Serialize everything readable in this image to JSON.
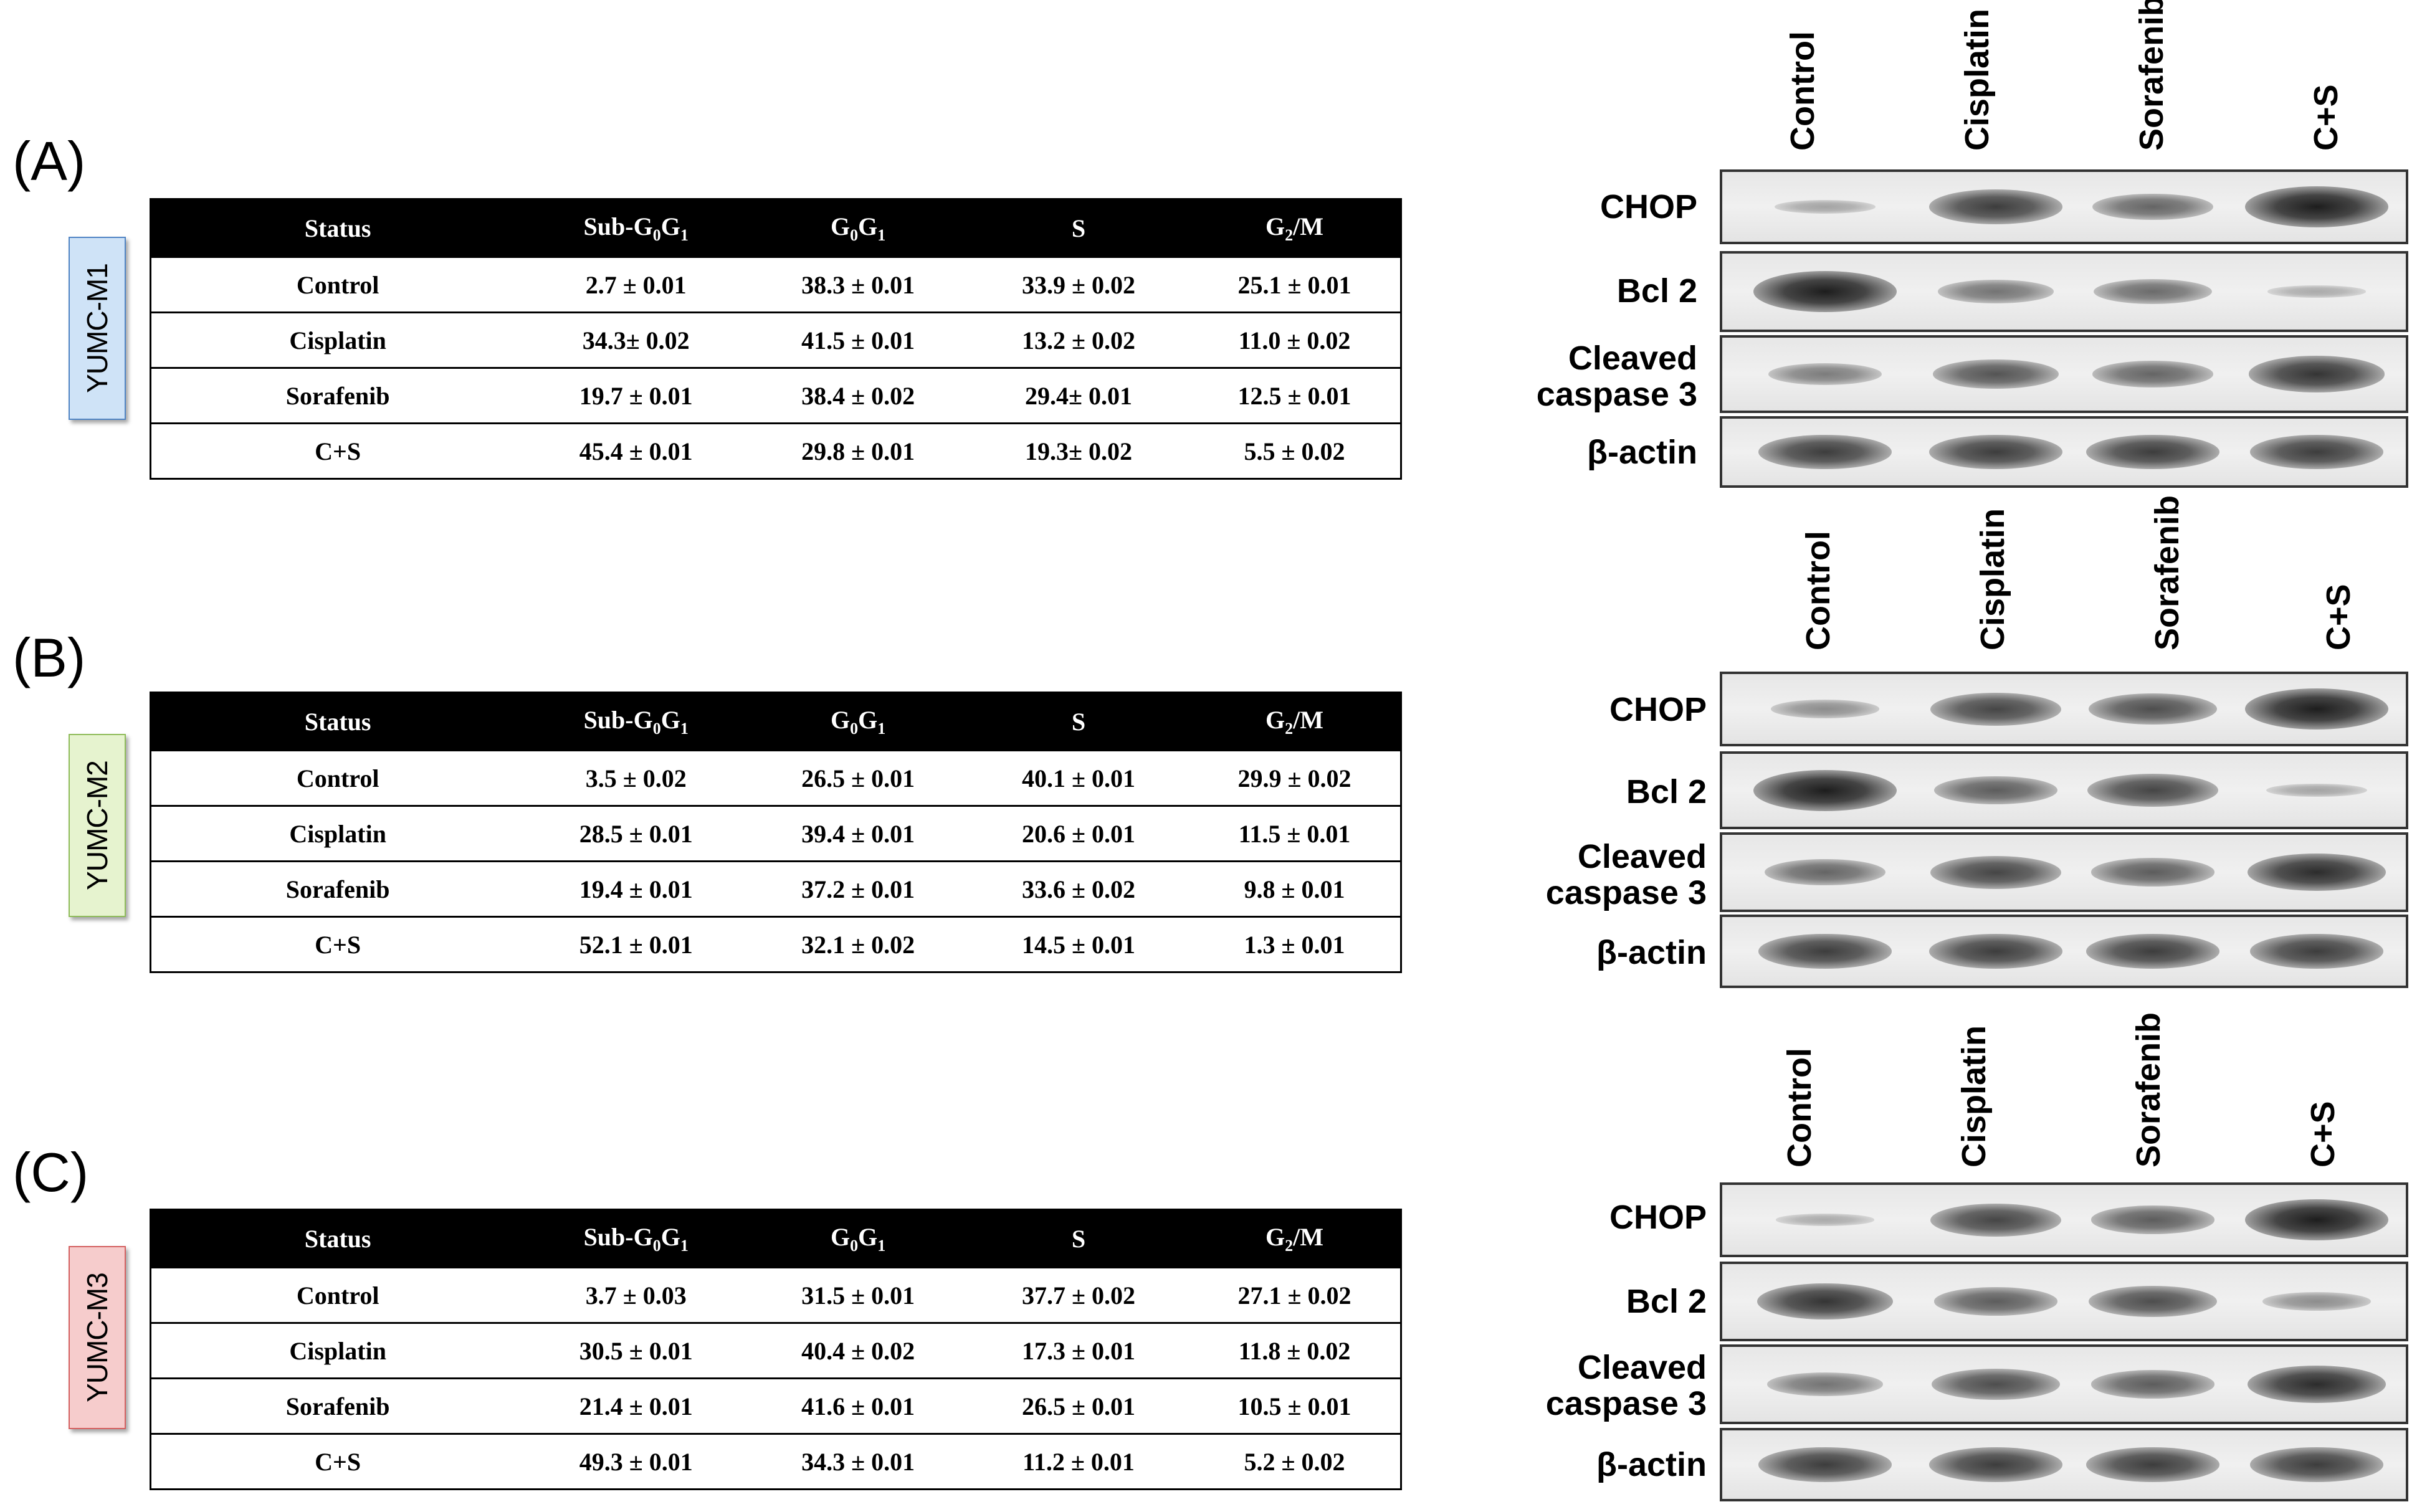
{
  "figure": {
    "columns": {
      "status": "Status",
      "sub_g0g1": {
        "main": "Sub-G",
        "sub1": "0",
        "mid": "G",
        "sub2": "1"
      },
      "g0g1": {
        "main": "G",
        "sub1": "0",
        "mid": "G",
        "sub2": "1"
      },
      "s": "S",
      "g2m": {
        "main": "G",
        "sub1": "2",
        "rest": "/M"
      }
    },
    "lanes": [
      "Control",
      "Cisplatin",
      "Sorafenib",
      "C+S"
    ],
    "blot_labels": {
      "chop": "CHOP",
      "bcl2": "Bcl 2",
      "cleaved1": "Cleaved",
      "cleaved2": "caspase 3",
      "actin": "β-actin"
    },
    "panels": [
      {
        "letter": "(A)",
        "cell_line": "YUMC-M1",
        "tag_color": "#cfe3f7",
        "rows": [
          [
            "Control",
            "2.7 ± 0.01",
            "38.3 ± 0.01",
            "33.9 ± 0.02",
            "25.1 ± 0.01"
          ],
          [
            "Cisplatin",
            "34.3± 0.02",
            "41.5 ± 0.01",
            "13.2 ± 0.02",
            "11.0 ± 0.02"
          ],
          [
            "Sorafenib",
            "19.7 ± 0.01",
            "38.4 ± 0.02",
            "29.4± 0.01",
            "12.5 ± 0.01"
          ],
          [
            "C+S",
            "45.4 ± 0.01",
            "29.8 ± 0.01",
            "19.3± 0.02",
            "5.5 ± 0.02"
          ]
        ],
        "band_intensity": {
          "CHOP": [
            0.15,
            0.8,
            0.55,
            1.0
          ],
          "Bcl 2": [
            1.0,
            0.45,
            0.5,
            0.1
          ],
          "Cleaved caspase 3": [
            0.4,
            0.65,
            0.55,
            0.85
          ],
          "β-actin": [
            0.8,
            0.8,
            0.8,
            0.8
          ]
        }
      },
      {
        "letter": "(B)",
        "cell_line": "YUMC-M2",
        "tag_color": "#e6f3cf",
        "rows": [
          [
            "Control",
            "3.5 ± 0.02",
            "26.5 ± 0.01",
            "40.1 ± 0.01",
            "29.9 ± 0.02"
          ],
          [
            "Cisplatin",
            "28.5 ± 0.01",
            "39.4 ± 0.01",
            "20.6 ± 0.01",
            "11.5 ± 0.01"
          ],
          [
            "Sorafenib",
            "19.4 ± 0.01",
            "37.2 ± 0.01",
            "33.6 ± 0.02",
            "9.8 ± 0.01"
          ],
          [
            "C+S",
            "52.1 ± 0.01",
            "32.1 ± 0.02",
            "14.5 ± 0.01",
            "1.3 ± 0.01"
          ]
        ],
        "band_intensity": {
          "CHOP": [
            0.3,
            0.75,
            0.7,
            1.0
          ],
          "Bcl 2": [
            1.0,
            0.6,
            0.75,
            0.15
          ],
          "Cleaved caspase 3": [
            0.55,
            0.75,
            0.6,
            0.9
          ],
          "β-actin": [
            0.8,
            0.8,
            0.8,
            0.8
          ]
        }
      },
      {
        "letter": "(C)",
        "cell_line": "YUMC-M3",
        "tag_color": "#f6cccc",
        "rows": [
          [
            "Control",
            "3.7 ± 0.03",
            "31.5 ± 0.01",
            "37.7 ± 0.02",
            "27.1 ± 0.02"
          ],
          [
            "Cisplatin",
            "30.5 ± 0.01",
            "40.4 ± 0.02",
            "17.3 ± 0.01",
            "11.8 ± 0.02"
          ],
          [
            "Sorafenib",
            "21.4 ± 0.01",
            "41.6 ± 0.01",
            "26.5 ± 0.01",
            "10.5 ± 0.01"
          ],
          [
            "C+S",
            "49.3 ± 0.01",
            "34.3 ± 0.01",
            "11.2 ± 0.01",
            "5.2 ± 0.02"
          ]
        ],
        "band_intensity": {
          "CHOP": [
            0.1,
            0.75,
            0.6,
            1.0
          ],
          "Bcl 2": [
            0.85,
            0.6,
            0.7,
            0.3
          ],
          "Cleaved caspase 3": [
            0.45,
            0.7,
            0.6,
            0.9
          ],
          "β-actin": [
            0.8,
            0.8,
            0.8,
            0.8
          ]
        }
      }
    ]
  }
}
